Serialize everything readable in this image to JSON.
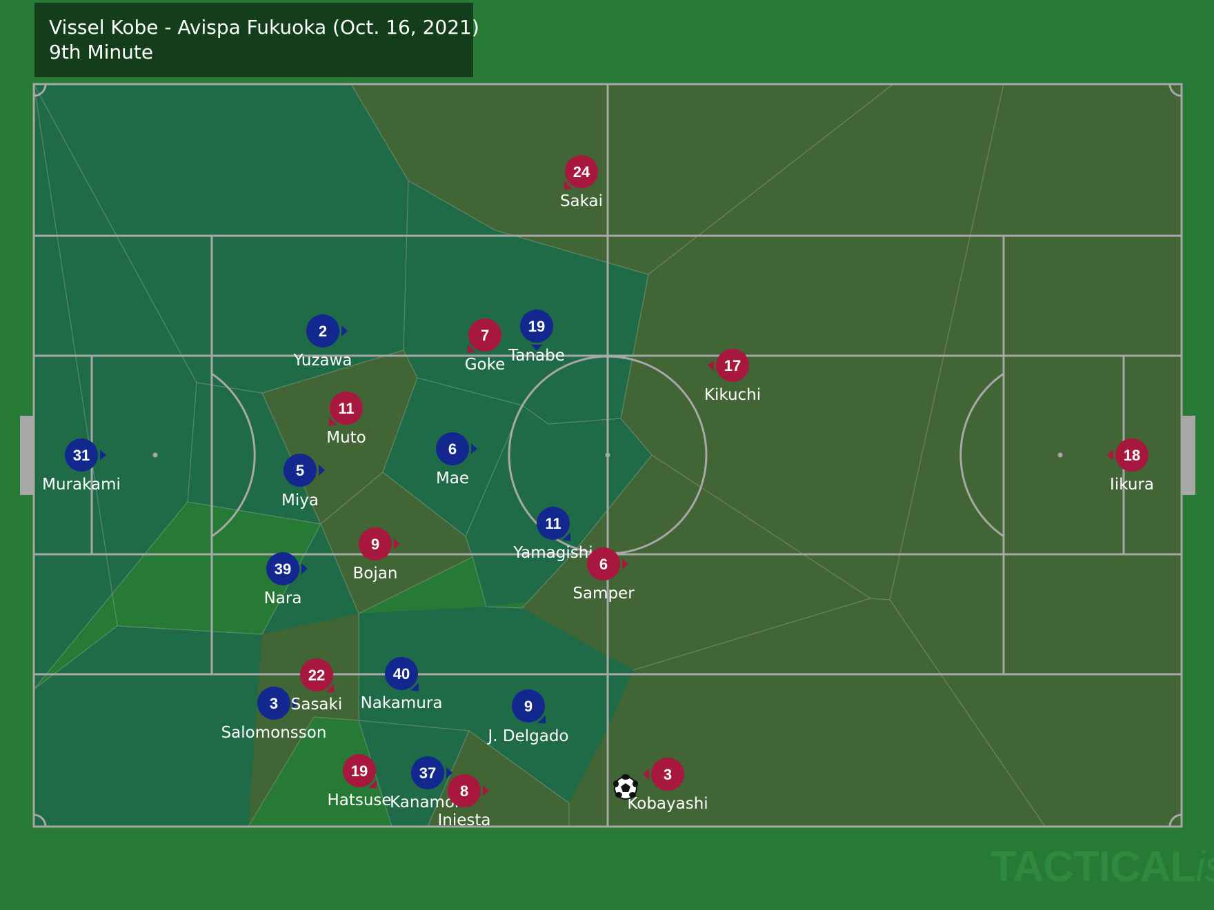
{
  "header": {
    "title": "Vissel Kobe - Avispa Fukuoka (Oct. 16, 2021)",
    "subtitle": "9th Minute"
  },
  "watermark": {
    "brand": "TACTICAL",
    "suffix": "ista"
  },
  "colors": {
    "background": "#267a35",
    "zone_home": "#1f6b47",
    "zone_away": "#416535",
    "home_team": "#12288f",
    "away_team": "#a8173d",
    "pitch_lines": "#a8a8a8"
  },
  "teams": {
    "blue": {
      "players": [
        {
          "number": "31",
          "name": "Murakami"
        },
        {
          "number": "2",
          "name": "Yuzawa"
        },
        {
          "number": "5",
          "name": "Miya"
        },
        {
          "number": "39",
          "name": "Nara"
        },
        {
          "number": "3",
          "name": "Salomonsson"
        },
        {
          "number": "6",
          "name": "Mae"
        },
        {
          "number": "19",
          "name": "Tanabe"
        },
        {
          "number": "11",
          "name": "Yamagishi"
        },
        {
          "number": "40",
          "name": "Nakamura"
        },
        {
          "number": "9",
          "name": "J. Delgado"
        },
        {
          "number": "37",
          "name": "Kanamori"
        }
      ]
    },
    "red": {
      "players": [
        {
          "number": "18",
          "name": "Iikura"
        },
        {
          "number": "24",
          "name": "Sakai"
        },
        {
          "number": "17",
          "name": "Kikuchi"
        },
        {
          "number": "7",
          "name": "Goke"
        },
        {
          "number": "11",
          "name": "Muto"
        },
        {
          "number": "9",
          "name": "Bojan"
        },
        {
          "number": "6",
          "name": "Samper"
        },
        {
          "number": "22",
          "name": "Sasaki"
        },
        {
          "number": "19",
          "name": "Hatsuse"
        },
        {
          "number": "8",
          "name": "Iniesta"
        },
        {
          "number": "3",
          "name": "Kobayashi"
        }
      ]
    }
  }
}
